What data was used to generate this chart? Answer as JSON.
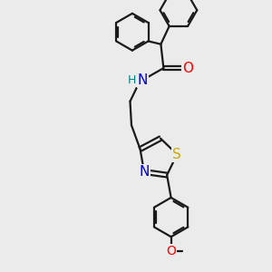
{
  "background_color": "#ebebeb",
  "bond_color": "#1a1a1a",
  "atom_colors": {
    "O": "#ff0000",
    "N": "#0000cd",
    "S": "#ccaa00",
    "H": "#008080",
    "C": "#1a1a1a"
  },
  "bond_lw": 1.6,
  "font_size": 10,
  "xlim": [
    0,
    10
  ],
  "ylim": [
    0,
    10
  ]
}
